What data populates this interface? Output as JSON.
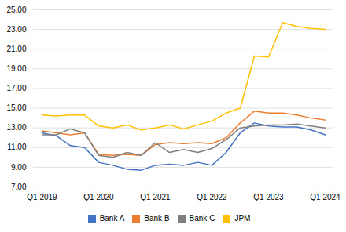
{
  "chart_data": {
    "type": "line",
    "categories": [
      "Q1 2019",
      null,
      null,
      null,
      "Q1 2020",
      null,
      null,
      null,
      "Q1 2021",
      null,
      null,
      null,
      "Q1 2022",
      null,
      null,
      null,
      "Q1 2023",
      null,
      null,
      null,
      "Q1 2024"
    ],
    "series": [
      {
        "name": "Bank A",
        "color": "#4472C4",
        "values": [
          12.5,
          12.2,
          11.2,
          11.0,
          9.5,
          9.2,
          8.8,
          8.7,
          9.2,
          9.3,
          9.2,
          9.5,
          9.2,
          10.5,
          12.5,
          13.5,
          13.2,
          13.1,
          13.1,
          12.8,
          12.3
        ]
      },
      {
        "name": "Bank B",
        "color": "#ED7D31",
        "values": [
          12.7,
          12.5,
          12.3,
          12.5,
          10.3,
          10.2,
          10.3,
          10.2,
          11.3,
          11.5,
          11.4,
          11.5,
          11.4,
          12.0,
          13.5,
          14.7,
          14.5,
          14.5,
          14.3,
          14.0,
          13.8
        ]
      },
      {
        "name": "Bank C",
        "color": "#7F7F7F",
        "values": [
          12.3,
          12.3,
          12.9,
          12.5,
          10.2,
          10.0,
          10.5,
          10.2,
          11.5,
          10.5,
          10.8,
          10.5,
          10.9,
          11.8,
          13.0,
          13.2,
          13.3,
          13.3,
          13.4,
          13.2,
          13.0
        ]
      },
      {
        "name": "JPM",
        "color": "#FFC000",
        "values": [
          14.3,
          14.2,
          14.3,
          14.3,
          13.2,
          13.0,
          13.3,
          12.8,
          13.0,
          13.3,
          12.9,
          13.3,
          13.7,
          14.5,
          15.0,
          20.3,
          20.2,
          23.7,
          23.3,
          23.1,
          23.0
        ]
      }
    ],
    "ylim": [
      7.0,
      25.0
    ],
    "yticks": [
      {
        "value": 7.0,
        "label": "7.00"
      },
      {
        "value": 9.0,
        "label": "9.00"
      },
      {
        "value": 11.0,
        "label": "11.00"
      },
      {
        "value": 13.0,
        "label": "13.00"
      },
      {
        "value": 15.0,
        "label": "15.00"
      },
      {
        "value": 17.0,
        "label": "17.00"
      },
      {
        "value": 19.0,
        "label": "19.00"
      },
      {
        "value": 21.0,
        "label": "21.00"
      },
      {
        "value": 23.0,
        "label": "23.00"
      },
      {
        "value": 25.0,
        "label": "25.00"
      }
    ],
    "grid": true,
    "legend": "bottom"
  }
}
